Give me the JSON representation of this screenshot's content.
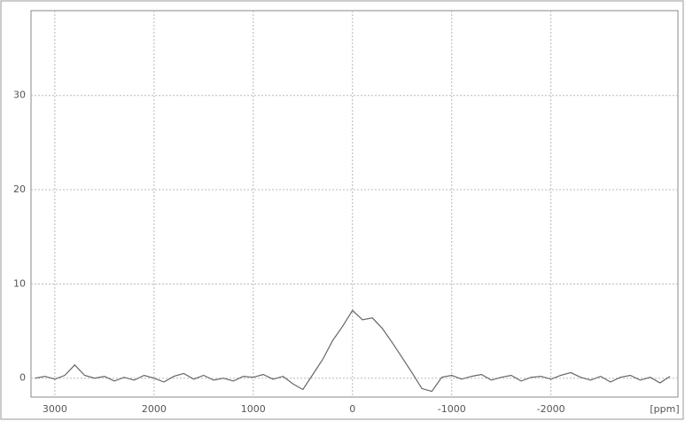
{
  "chart_data": {
    "type": "line",
    "xlabel": "[ppm]",
    "x": [
      3200,
      3100,
      3000,
      2900,
      2800,
      2700,
      2600,
      2500,
      2400,
      2300,
      2200,
      2100,
      2000,
      1900,
      1800,
      1700,
      1600,
      1500,
      1400,
      1300,
      1200,
      1100,
      1000,
      900,
      800,
      700,
      600,
      500,
      400,
      300,
      200,
      100,
      0,
      -100,
      -200,
      -300,
      -400,
      -500,
      -600,
      -700,
      -800,
      -900,
      -1000,
      -1100,
      -1200,
      -1300,
      -1400,
      -1500,
      -1600,
      -1700,
      -1800,
      -1900,
      -2000,
      -2100,
      -2200,
      -2300,
      -2400,
      -2500,
      -2600,
      -2700,
      -2800,
      -2900,
      -3000,
      -3100,
      -3200
    ],
    "series": [
      {
        "color": "#666666",
        "values": [
          0,
          0.2,
          -0.1,
          0.3,
          1.4,
          0.3,
          0,
          0.2,
          -0.3,
          0.1,
          -0.2,
          0.3,
          0,
          -0.4,
          0.2,
          0.5,
          -0.1,
          0.3,
          -0.2,
          0,
          -0.3,
          0.2,
          0.1,
          0.4,
          -0.1,
          0.2,
          -0.6,
          -1.2,
          0.4,
          2,
          4,
          5.5,
          7.2,
          6.2,
          6.4,
          5.3,
          3.8,
          2.2,
          0.6,
          -1.1,
          -1.4,
          0.1,
          0.3,
          -0.1,
          0.2,
          0.4,
          -0.2,
          0.1,
          0.3,
          -0.3,
          0.1,
          0.2,
          -0.1,
          0.3,
          0.6,
          0.1,
          -0.2,
          0.2,
          -0.4,
          0.1,
          0.3,
          -0.2,
          0.1,
          -0.5,
          0.2
        ]
      }
    ],
    "xlim": [
      3240,
      -3280
    ],
    "xticks": [
      3000,
      2000,
      1000,
      0,
      -1000,
      -2000
    ],
    "ylim": [
      -2,
      39
    ],
    "yticks": [
      0,
      10,
      20,
      30
    ],
    "grid": true
  }
}
